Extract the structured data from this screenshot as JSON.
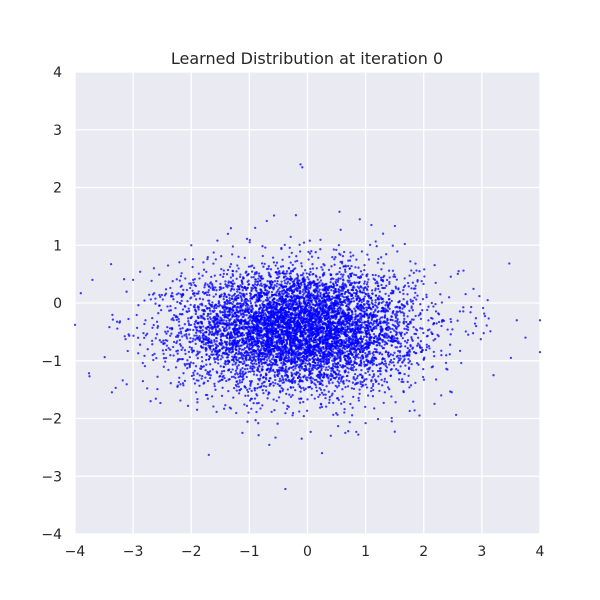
{
  "chart_data": {
    "type": "scatter",
    "title": "Learned Distribution at iteration 0",
    "xlabel": "",
    "ylabel": "",
    "xlim": [
      -4,
      4
    ],
    "ylim": [
      -4,
      4
    ],
    "xticks": [
      "−4",
      "−3",
      "−2",
      "−1",
      "0",
      "1",
      "2",
      "3",
      "4"
    ],
    "yticks": [
      "−4",
      "−3",
      "−2",
      "−1",
      "0",
      "1",
      "2",
      "3",
      "4"
    ],
    "grid": true,
    "legend": "none",
    "colors": {
      "background": "#eaeaf2",
      "grid": "#ffffff",
      "point": "#0000ff",
      "text": "#262626"
    },
    "series": [
      {
        "description_of_generation": "",
        "points": [
          [
            -0.12,
            2.4
          ],
          [
            -0.09,
            2.35
          ],
          [
            -0.38,
            -3.22
          ],
          [
            0.25,
            -2.6
          ],
          [
            -0.55,
            -2.33
          ],
          [
            -1.12,
            -2.25
          ],
          [
            0.65,
            -2.25
          ],
          [
            0.7,
            -2.22
          ],
          [
            -0.7,
            1.42
          ],
          [
            -0.2,
            1.52
          ],
          [
            0.55,
            1.58
          ],
          [
            0.9,
            1.45
          ],
          [
            -1.55,
            1.08
          ],
          [
            -2.0,
            1.0
          ],
          [
            1.3,
            1.2
          ],
          [
            -4.0,
            -0.38
          ],
          [
            -3.9,
            0.17
          ],
          [
            -3.7,
            0.4
          ],
          [
            -3.75,
            -1.27
          ],
          [
            -3.3,
            -1.47
          ],
          [
            -3.0,
            0.4
          ],
          [
            -2.7,
            -1.7
          ],
          [
            3.6,
            -0.3
          ],
          [
            3.75,
            -0.6
          ],
          [
            4.0,
            -0.3
          ],
          [
            4.0,
            -0.85
          ],
          [
            3.5,
            -0.95
          ],
          [
            3.2,
            -1.25
          ],
          [
            2.9,
            -0.4
          ],
          [
            3.1,
            0.05
          ],
          [
            1.45,
            -2.05
          ],
          [
            1.0,
            -2.08
          ],
          [
            -0.1,
            -2.35
          ],
          [
            0.4,
            -2.3
          ],
          [
            -1.9,
            -1.85
          ],
          [
            2.3,
            -1.6
          ],
          [
            2.6,
            0.55
          ],
          [
            -2.4,
            0.65
          ],
          [
            1.1,
            1.35
          ],
          [
            -0.9,
            1.3
          ]
        ],
        "cluster": {
          "count": 7000,
          "mean": [
            -0.15,
            -0.45
          ],
          "sd": [
            1.0,
            0.52
          ]
        }
      }
    ]
  }
}
